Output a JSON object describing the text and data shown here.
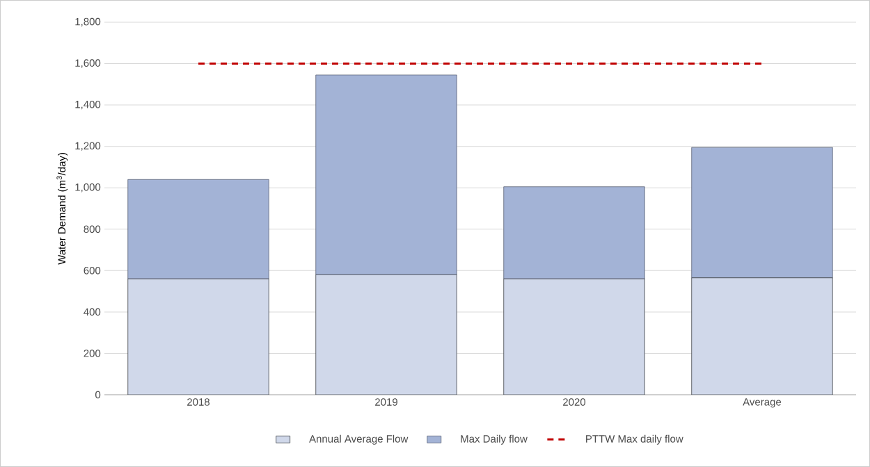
{
  "chart_data": {
    "type": "bar",
    "stacked": true,
    "ylabel": "Water Demand (m$^{3}$/day)",
    "categories": [
      "2018",
      "2019",
      "2020",
      "Average"
    ],
    "series": [
      {
        "name": "Annual Average Flow",
        "color": "#d0d8ea",
        "values": [
          560,
          580,
          560,
          565
        ]
      },
      {
        "name": "Max Daily flow",
        "color": "#a3b3d6",
        "values": [
          480,
          965,
          445,
          630
        ]
      },
      {
        "name": "PTTW Max daily flow",
        "type": "line",
        "line_style": "dashed",
        "marker": "none",
        "color": "#c00000",
        "values": [
          1600,
          1600,
          1600,
          1600
        ]
      }
    ],
    "ylim": [
      0,
      1800
    ],
    "yticks": [
      0,
      200,
      400,
      600,
      800,
      {
        "value": 1000,
        "label": "1,000"
      },
      {
        "value": 1200,
        "label": "1,200"
      },
      {
        "value": 1400,
        "label": "1,400"
      },
      {
        "value": 1600,
        "label": "1,600"
      },
      {
        "value": 1800,
        "label": "1,800"
      }
    ],
    "grid": "y",
    "legend": "bottom"
  }
}
